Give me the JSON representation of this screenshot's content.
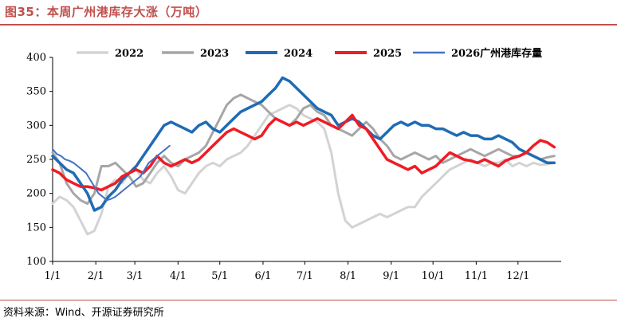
{
  "header": {
    "title": "图35：本周广州港库存大涨（万吨）"
  },
  "footer": {
    "source": "资料来源：Wind、开源证券研究所"
  },
  "colors": {
    "accent": "#c0504d",
    "s2022": "#d3d3d3",
    "s2023": "#a6a6a6",
    "s2024": "#1f6bb5",
    "s2025": "#ee1c25",
    "s2026": "#4472c4"
  },
  "chart_data": {
    "type": "line",
    "ylim": [
      100,
      400
    ],
    "yticks": [
      100,
      150,
      200,
      250,
      300,
      350,
      400
    ],
    "xticks": [
      "1/1",
      "2/1",
      "3/1",
      "4/1",
      "5/1",
      "6/1",
      "7/1",
      "8/1",
      "9/1",
      "10/1",
      "11/1",
      "12/1"
    ],
    "x_unit": "day_of_year",
    "series": [
      {
        "name": "2022",
        "color": "#d3d3d3",
        "width": 3,
        "x": [
          0,
          5,
          10,
          15,
          20,
          25,
          30,
          35,
          40,
          45,
          50,
          55,
          60,
          65,
          70,
          75,
          80,
          85,
          90,
          95,
          100,
          105,
          110,
          115,
          120,
          125,
          130,
          135,
          140,
          145,
          150,
          155,
          160,
          165,
          170,
          175,
          180,
          185,
          190,
          195,
          200,
          205,
          210,
          215,
          220,
          225,
          230,
          235,
          240,
          245,
          250,
          255,
          260,
          265,
          270,
          275,
          280,
          285,
          290,
          295,
          300,
          305,
          310,
          315,
          320,
          325,
          330,
          335,
          340,
          345,
          350,
          355,
          360
        ],
        "y": [
          185,
          195,
          190,
          180,
          160,
          140,
          145,
          170,
          210,
          220,
          215,
          230,
          235,
          220,
          215,
          230,
          240,
          225,
          205,
          200,
          215,
          230,
          240,
          245,
          240,
          250,
          255,
          260,
          270,
          285,
          300,
          315,
          320,
          325,
          330,
          325,
          315,
          310,
          305,
          295,
          260,
          200,
          160,
          150,
          155,
          160,
          165,
          170,
          165,
          170,
          175,
          180,
          180,
          195,
          205,
          215,
          225,
          235,
          240,
          245,
          250,
          245,
          240,
          245,
          245,
          250,
          240,
          245,
          240,
          245,
          242,
          243,
          245
        ]
      },
      {
        "name": "2023",
        "color": "#a6a6a6",
        "width": 3,
        "x": [
          0,
          5,
          10,
          15,
          20,
          25,
          30,
          35,
          40,
          45,
          50,
          55,
          60,
          65,
          70,
          75,
          80,
          85,
          90,
          95,
          100,
          105,
          110,
          115,
          120,
          125,
          130,
          135,
          140,
          145,
          150,
          155,
          160,
          165,
          170,
          175,
          180,
          185,
          190,
          195,
          200,
          205,
          210,
          215,
          220,
          225,
          230,
          235,
          240,
          245,
          250,
          255,
          260,
          265,
          270,
          275,
          280,
          285,
          290,
          295,
          300,
          305,
          310,
          315,
          320,
          325,
          330,
          335,
          340,
          345,
          350,
          355,
          360
        ],
        "y": [
          260,
          245,
          215,
          200,
          190,
          185,
          200,
          240,
          240,
          245,
          235,
          225,
          210,
          215,
          230,
          245,
          255,
          245,
          240,
          250,
          255,
          260,
          270,
          290,
          310,
          330,
          340,
          345,
          340,
          335,
          330,
          320,
          310,
          305,
          300,
          310,
          325,
          330,
          320,
          315,
          300,
          295,
          290,
          285,
          295,
          305,
          295,
          280,
          270,
          255,
          250,
          255,
          260,
          255,
          250,
          255,
          245,
          250,
          255,
          260,
          265,
          260,
          255,
          260,
          265,
          260,
          255,
          255,
          260,
          255,
          250,
          253,
          255
        ]
      },
      {
        "name": "2024",
        "color": "#1f6bb5",
        "width": 3.5,
        "x": [
          0,
          5,
          10,
          15,
          20,
          25,
          30,
          35,
          40,
          45,
          50,
          55,
          60,
          65,
          70,
          75,
          80,
          85,
          90,
          95,
          100,
          105,
          110,
          115,
          120,
          125,
          130,
          135,
          140,
          145,
          150,
          155,
          160,
          165,
          170,
          175,
          180,
          185,
          190,
          195,
          200,
          205,
          210,
          215,
          220,
          225,
          230,
          235,
          240,
          245,
          250,
          255,
          260,
          265,
          270,
          275,
          280,
          285,
          290,
          295,
          300,
          305,
          310,
          315,
          320,
          325,
          330,
          335,
          340,
          345,
          350,
          355,
          360
        ],
        "y": [
          255,
          245,
          235,
          230,
          215,
          200,
          175,
          180,
          195,
          205,
          220,
          230,
          240,
          255,
          270,
          285,
          300,
          305,
          300,
          295,
          290,
          300,
          305,
          295,
          290,
          300,
          310,
          320,
          325,
          330,
          335,
          345,
          355,
          370,
          365,
          355,
          345,
          335,
          325,
          320,
          315,
          300,
          305,
          310,
          305,
          295,
          285,
          280,
          290,
          300,
          305,
          300,
          305,
          300,
          300,
          295,
          295,
          290,
          285,
          290,
          285,
          285,
          280,
          280,
          285,
          280,
          275,
          265,
          260,
          255,
          250,
          245,
          245
        ]
      },
      {
        "name": "2025",
        "color": "#ee1c25",
        "width": 3.5,
        "x": [
          0,
          5,
          10,
          15,
          20,
          25,
          30,
          35,
          40,
          45,
          50,
          55,
          60,
          65,
          70,
          75,
          80,
          85,
          90,
          95,
          100,
          105,
          110,
          115,
          120,
          125,
          130,
          135,
          140,
          145,
          150,
          155,
          160,
          165,
          170,
          175,
          180,
          185,
          190,
          195,
          200,
          205,
          210,
          215,
          220,
          225,
          230,
          235,
          240,
          245,
          250,
          255,
          260,
          265,
          270,
          275,
          280,
          285,
          290,
          295,
          300,
          305,
          310,
          315,
          320,
          325,
          330,
          335,
          340,
          345,
          350,
          355,
          360
        ],
        "y": [
          235,
          230,
          220,
          215,
          210,
          210,
          208,
          205,
          210,
          215,
          225,
          230,
          235,
          230,
          240,
          255,
          245,
          240,
          245,
          250,
          245,
          250,
          260,
          270,
          280,
          290,
          295,
          290,
          285,
          280,
          285,
          300,
          310,
          305,
          300,
          305,
          300,
          305,
          310,
          305,
          300,
          295,
          305,
          315,
          300,
          295,
          280,
          265,
          250,
          245,
          240,
          235,
          240,
          230,
          235,
          240,
          250,
          260,
          255,
          250,
          248,
          245,
          250,
          245,
          240,
          248,
          252,
          255,
          260,
          270,
          278,
          275,
          268
        ]
      },
      {
        "name": "2026广州港库存量",
        "color": "#4472c4",
        "width": 2,
        "x": [
          0,
          3,
          6,
          9,
          12,
          15,
          18,
          21,
          24,
          27,
          30,
          33,
          36,
          39,
          42,
          45,
          48,
          51,
          54,
          57,
          60,
          63,
          66,
          69,
          72,
          75,
          78,
          81,
          84
        ],
        "y": [
          265,
          258,
          255,
          250,
          248,
          245,
          240,
          235,
          230,
          220,
          210,
          200,
          195,
          190,
          192,
          195,
          200,
          205,
          210,
          215,
          220,
          225,
          235,
          245,
          250,
          255,
          260,
          265,
          270
        ]
      }
    ]
  }
}
